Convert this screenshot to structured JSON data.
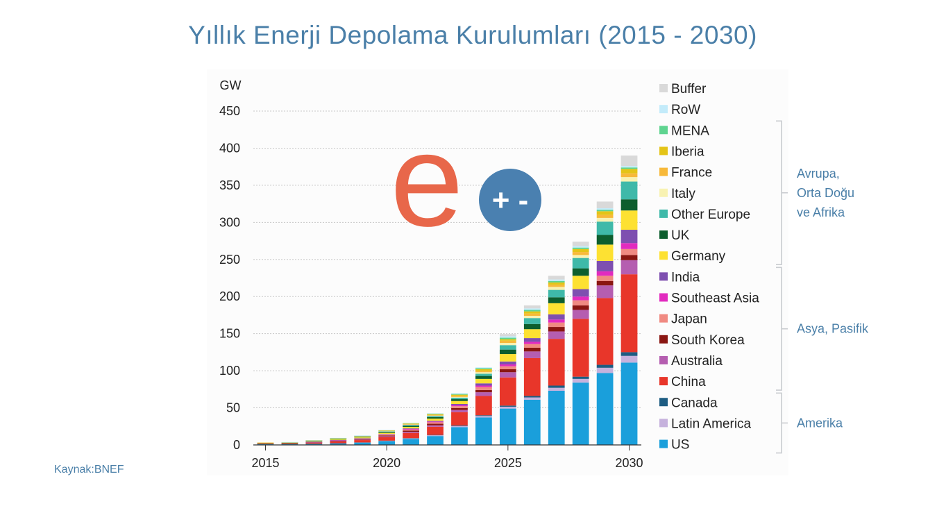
{
  "page": {
    "title": "Yıllık Enerji Depolama Kurulumları (2015 - 2030)",
    "source": "Kaynak:BNEF",
    "logo_letter": "e",
    "logo_symbol": "+ -"
  },
  "chart_data": {
    "type": "bar",
    "stacked": true,
    "ylabel": "GW",
    "ylim": [
      0,
      450
    ],
    "yticks": [
      0,
      50,
      100,
      150,
      200,
      250,
      300,
      350,
      400,
      450
    ],
    "xtick_labels": [
      "2015",
      "2020",
      "2025",
      "2030"
    ],
    "grid": true,
    "legend_position": "right",
    "categories": [
      2015,
      2016,
      2017,
      2018,
      2019,
      2020,
      2021,
      2022,
      2023,
      2024,
      2025,
      2026,
      2027,
      2028,
      2029,
      2030
    ],
    "series": [
      {
        "name": "US",
        "color": "#1a9fdb",
        "values": [
          1,
          1,
          1.5,
          2,
          3,
          5,
          8,
          12,
          24,
          37,
          49,
          61,
          73,
          84,
          97,
          111
        ]
      },
      {
        "name": "Latin America",
        "color": "#c6b2dd",
        "values": [
          0,
          0,
          0.1,
          0.2,
          0.3,
          0.5,
          0.8,
          1,
          1.5,
          2,
          2.5,
          3,
          4,
          5,
          7,
          9
        ]
      },
      {
        "name": "Canada",
        "color": "#1d5c82",
        "values": [
          0,
          0,
          0.1,
          0.1,
          0.2,
          0.3,
          0.4,
          0.5,
          0.7,
          1,
          1.5,
          2,
          3,
          3,
          4,
          5
        ]
      },
      {
        "name": "China",
        "color": "#e8362a",
        "values": [
          1,
          1,
          1.5,
          2.5,
          3,
          5,
          7,
          11,
          18,
          26,
          38,
          51,
          63,
          78,
          90,
          105
        ]
      },
      {
        "name": "Australia",
        "color": "#b55eb0",
        "values": [
          0,
          0,
          0.2,
          0.4,
          0.6,
          1,
          1.5,
          2,
          3,
          5,
          7,
          9,
          10,
          12,
          17,
          19
        ]
      },
      {
        "name": "South Korea",
        "color": "#8a1612",
        "values": [
          0,
          0.2,
          0.4,
          0.6,
          0.8,
          1,
          1.5,
          2,
          2.5,
          3,
          4,
          5,
          6,
          6,
          6,
          7
        ]
      },
      {
        "name": "Japan",
        "color": "#f08a82",
        "values": [
          0,
          0,
          0.2,
          0.3,
          0.5,
          1,
          1.5,
          2,
          2.5,
          4,
          4,
          5,
          6,
          7,
          7,
          8
        ]
      },
      {
        "name": "Southeast Asia",
        "color": "#e22bbf",
        "values": [
          0,
          0,
          0.1,
          0.2,
          0.3,
          0.5,
          0.8,
          1,
          1.5,
          2,
          2.5,
          3,
          4,
          5,
          6,
          8
        ]
      },
      {
        "name": "India",
        "color": "#7e4fb0",
        "values": [
          0,
          0,
          0.1,
          0.2,
          0.3,
          0.5,
          0.8,
          1,
          1.5,
          3,
          4,
          5,
          7,
          10,
          14,
          18
        ]
      },
      {
        "name": "Germany",
        "color": "#fde132",
        "values": [
          0.3,
          0.5,
          0.8,
          1,
          1.2,
          1.5,
          2,
          3,
          4,
          6,
          10,
          12,
          15,
          18,
          22,
          26
        ]
      },
      {
        "name": "UK",
        "color": "#0d5e2e",
        "values": [
          0.1,
          0.2,
          0.3,
          0.4,
          0.5,
          1,
          1.5,
          2,
          2.5,
          4,
          6,
          7,
          8,
          10,
          13,
          15
        ]
      },
      {
        "name": "Other Europe",
        "color": "#3fb9a9",
        "values": [
          0.4,
          0.5,
          0.6,
          0.7,
          0.8,
          1,
          1.2,
          1.5,
          2,
          3,
          6,
          8,
          10,
          14,
          18,
          24
        ]
      },
      {
        "name": "Italy",
        "color": "#f8f2b2",
        "values": [
          0.1,
          0.1,
          0.1,
          0.2,
          0.2,
          0.3,
          0.4,
          0.5,
          1,
          2,
          3,
          3,
          4,
          4,
          5,
          6
        ]
      },
      {
        "name": "France",
        "color": "#f7b93a",
        "values": [
          0.1,
          0.1,
          0.2,
          0.2,
          0.3,
          0.5,
          0.8,
          1,
          1.5,
          2,
          3,
          3,
          3,
          4,
          4,
          5
        ]
      },
      {
        "name": "Iberia",
        "color": "#e4c417",
        "values": [
          0.1,
          0.1,
          0.1,
          0.2,
          0.3,
          0.5,
          0.7,
          1,
          1.5,
          2,
          2,
          3,
          3,
          4,
          5,
          6
        ]
      },
      {
        "name": "MENA",
        "color": "#5fd490",
        "values": [
          0,
          0.1,
          0.1,
          0.1,
          0.2,
          0.3,
          0.5,
          0.7,
          1,
          1.5,
          2,
          2,
          2,
          2,
          2,
          2
        ]
      },
      {
        "name": "RoW",
        "color": "#c3ebfa",
        "values": [
          0,
          0.1,
          0.1,
          0.2,
          0.2,
          0.3,
          0.4,
          0.5,
          1,
          1,
          2,
          2,
          2,
          2,
          2,
          2
        ]
      },
      {
        "name": "Buffer",
        "color": "#d9d9d9",
        "values": [
          0,
          0,
          0,
          0,
          0,
          0,
          0,
          0,
          0,
          0,
          3,
          4,
          5,
          6,
          9,
          14
        ]
      }
    ],
    "legend_order": [
      "Buffer",
      "RoW",
      "MENA",
      "Iberia",
      "France",
      "Italy",
      "Other Europe",
      "UK",
      "Germany",
      "India",
      "Southeast Asia",
      "Japan",
      "South Korea",
      "Australia",
      "China",
      "Canada",
      "Latin America",
      "US"
    ],
    "legend_groups": [
      {
        "label": "Avrupa,\nOrta Doğu\nve Afrika",
        "from": "MENA",
        "to": "Germany"
      },
      {
        "label": "Asya, Pasifik",
        "from": "India",
        "to": "China"
      },
      {
        "label": "Amerika",
        "from": "Canada",
        "to": "US"
      }
    ]
  }
}
